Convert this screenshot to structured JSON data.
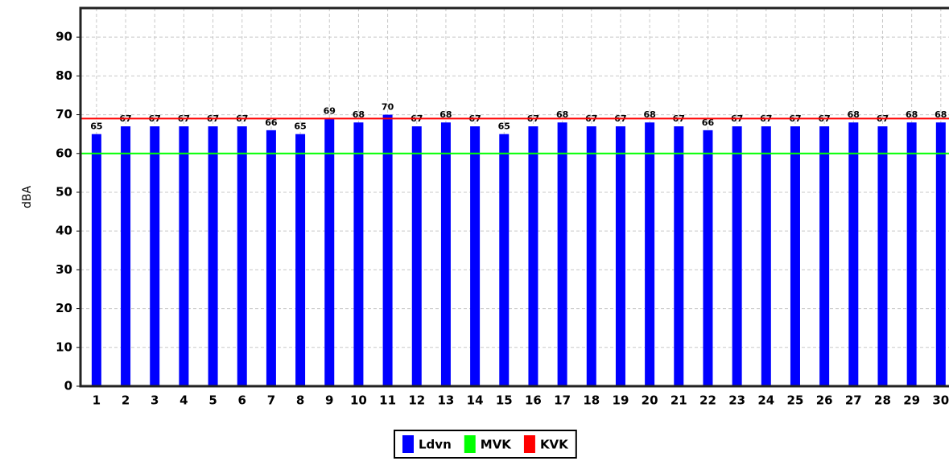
{
  "chart_data": {
    "type": "bar",
    "y_label": "dBA",
    "categories": [
      "1",
      "2",
      "3",
      "4",
      "5",
      "6",
      "7",
      "8",
      "9",
      "10",
      "11",
      "12",
      "13",
      "14",
      "15",
      "16",
      "17",
      "18",
      "19",
      "20",
      "21",
      "22",
      "23",
      "24",
      "25",
      "26",
      "27",
      "28",
      "29",
      "30"
    ],
    "series": [
      {
        "name": "Ldvn",
        "color": "#0000ff",
        "values": [
          65,
          67,
          67,
          67,
          67,
          67,
          66,
          65,
          69,
          68,
          70,
          67,
          68,
          67,
          65,
          67,
          68,
          67,
          67,
          68,
          67,
          66,
          67,
          67,
          67,
          67,
          68,
          67,
          68,
          68
        ]
      }
    ],
    "reference_lines": [
      {
        "name": "MVK",
        "color": "#00ff00",
        "value": 60
      },
      {
        "name": "KVK",
        "color": "#ff0000",
        "value": 69
      }
    ],
    "ylim": [
      0,
      97.5
    ],
    "yticks": [
      0,
      10,
      20,
      30,
      40,
      50,
      60,
      70,
      80,
      90
    ],
    "grid": true,
    "legend": "bottom"
  }
}
